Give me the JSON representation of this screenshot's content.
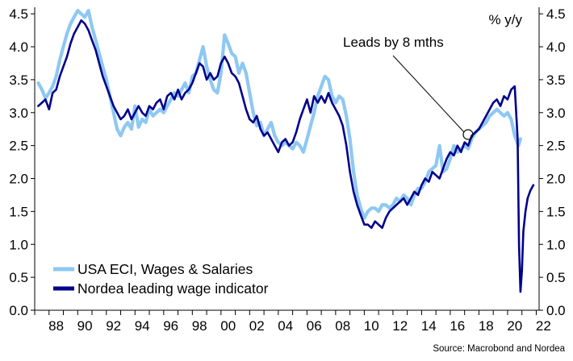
{
  "chart_data": {
    "type": "line",
    "unit_label": "% y/y",
    "source": "Source: Macrobond and Nordea",
    "annotation": {
      "text": "Leads by 8 mths",
      "x": 2017.7,
      "y": 2.7
    },
    "xlim": [
      1987.0,
      2022.2
    ],
    "ylim": [
      0.0,
      4.6
    ],
    "y_ticks": [
      0.0,
      0.5,
      1.0,
      1.5,
      2.0,
      2.5,
      3.0,
      3.5,
      4.0,
      4.5
    ],
    "x_ticks": [
      1988,
      1990,
      1992,
      1994,
      1996,
      1998,
      2000,
      2002,
      2004,
      2006,
      2008,
      2010,
      2012,
      2014,
      2016,
      2018,
      2020,
      2022
    ],
    "x_tick_labels": [
      "88",
      "90",
      "92",
      "94",
      "96",
      "98",
      "00",
      "02",
      "04",
      "06",
      "08",
      "10",
      "12",
      "14",
      "16",
      "18",
      "20",
      "22"
    ],
    "grid": false,
    "legend_position": "bottom-left",
    "colors": {
      "series_0": "#8ec8f2",
      "series_1": "#00008c"
    },
    "series": [
      {
        "name": "USA ECI, Wages & Salaries",
        "points": [
          [
            1987.25,
            3.45
          ],
          [
            1987.5,
            3.35
          ],
          [
            1987.75,
            3.22
          ],
          [
            1988.0,
            3.3
          ],
          [
            1988.25,
            3.4
          ],
          [
            1988.5,
            3.55
          ],
          [
            1988.75,
            3.8
          ],
          [
            1989.0,
            4.0
          ],
          [
            1989.25,
            4.2
          ],
          [
            1989.5,
            4.35
          ],
          [
            1989.75,
            4.45
          ],
          [
            1990.0,
            4.55
          ],
          [
            1990.25,
            4.5
          ],
          [
            1990.5,
            4.45
          ],
          [
            1990.75,
            4.55
          ],
          [
            1991.0,
            4.3
          ],
          [
            1991.25,
            4.1
          ],
          [
            1991.5,
            3.9
          ],
          [
            1991.75,
            3.7
          ],
          [
            1992.0,
            3.5
          ],
          [
            1992.25,
            3.25
          ],
          [
            1992.5,
            3.0
          ],
          [
            1992.75,
            2.75
          ],
          [
            1993.0,
            2.65
          ],
          [
            1993.25,
            2.78
          ],
          [
            1993.5,
            2.85
          ],
          [
            1993.75,
            2.75
          ],
          [
            1994.0,
            3.1
          ],
          [
            1994.25,
            2.78
          ],
          [
            1994.5,
            2.9
          ],
          [
            1994.75,
            2.85
          ],
          [
            1995.0,
            3.05
          ],
          [
            1995.25,
            2.95
          ],
          [
            1995.5,
            3.0
          ],
          [
            1995.75,
            3.05
          ],
          [
            1996.0,
            3.0
          ],
          [
            1996.25,
            3.1
          ],
          [
            1996.5,
            3.2
          ],
          [
            1996.75,
            3.3
          ],
          [
            1997.0,
            3.25
          ],
          [
            1997.25,
            3.35
          ],
          [
            1997.5,
            3.45
          ],
          [
            1997.75,
            3.3
          ],
          [
            1998.0,
            3.55
          ],
          [
            1998.25,
            3.6
          ],
          [
            1998.5,
            3.8
          ],
          [
            1998.75,
            4.0
          ],
          [
            1999.0,
            3.7
          ],
          [
            1999.25,
            3.5
          ],
          [
            1999.5,
            3.35
          ],
          [
            1999.75,
            3.3
          ],
          [
            2000.0,
            3.6
          ],
          [
            2000.25,
            4.18
          ],
          [
            2000.5,
            4.05
          ],
          [
            2000.75,
            3.9
          ],
          [
            2001.0,
            3.85
          ],
          [
            2001.25,
            3.6
          ],
          [
            2001.5,
            3.75
          ],
          [
            2001.75,
            3.6
          ],
          [
            2002.0,
            3.3
          ],
          [
            2002.25,
            3.0
          ],
          [
            2002.5,
            2.8
          ],
          [
            2002.75,
            2.85
          ],
          [
            2003.0,
            2.65
          ],
          [
            2003.25,
            2.75
          ],
          [
            2003.5,
            2.85
          ],
          [
            2003.75,
            2.65
          ],
          [
            2004.0,
            2.55
          ],
          [
            2004.25,
            2.5
          ],
          [
            2004.5,
            2.55
          ],
          [
            2004.75,
            2.5
          ],
          [
            2005.0,
            2.45
          ],
          [
            2005.25,
            2.55
          ],
          [
            2005.5,
            2.5
          ],
          [
            2005.75,
            2.4
          ],
          [
            2006.0,
            2.6
          ],
          [
            2006.25,
            2.8
          ],
          [
            2006.5,
            3.0
          ],
          [
            2006.75,
            3.25
          ],
          [
            2007.0,
            3.4
          ],
          [
            2007.25,
            3.55
          ],
          [
            2007.5,
            3.5
          ],
          [
            2007.75,
            3.25
          ],
          [
            2008.0,
            3.15
          ],
          [
            2008.25,
            3.25
          ],
          [
            2008.5,
            3.2
          ],
          [
            2008.75,
            2.95
          ],
          [
            2009.0,
            2.6
          ],
          [
            2009.25,
            2.1
          ],
          [
            2009.5,
            1.75
          ],
          [
            2009.75,
            1.55
          ],
          [
            2010.0,
            1.4
          ],
          [
            2010.25,
            1.5
          ],
          [
            2010.5,
            1.55
          ],
          [
            2010.75,
            1.55
          ],
          [
            2011.0,
            1.5
          ],
          [
            2011.25,
            1.6
          ],
          [
            2011.5,
            1.6
          ],
          [
            2011.75,
            1.55
          ],
          [
            2012.0,
            1.6
          ],
          [
            2012.25,
            1.7
          ],
          [
            2012.5,
            1.65
          ],
          [
            2012.75,
            1.75
          ],
          [
            2013.0,
            1.7
          ],
          [
            2013.25,
            1.6
          ],
          [
            2013.5,
            1.75
          ],
          [
            2013.75,
            1.85
          ],
          [
            2014.0,
            1.85
          ],
          [
            2014.25,
            1.95
          ],
          [
            2014.5,
            2.1
          ],
          [
            2014.75,
            2.15
          ],
          [
            2015.0,
            2.2
          ],
          [
            2015.25,
            2.5
          ],
          [
            2015.5,
            2.1
          ],
          [
            2015.75,
            2.15
          ],
          [
            2016.0,
            2.3
          ],
          [
            2016.25,
            2.5
          ],
          [
            2016.5,
            2.4
          ],
          [
            2016.75,
            2.45
          ],
          [
            2017.0,
            2.5
          ],
          [
            2017.25,
            2.45
          ],
          [
            2017.5,
            2.6
          ],
          [
            2017.75,
            2.7
          ],
          [
            2018.0,
            2.75
          ],
          [
            2018.25,
            2.8
          ],
          [
            2018.5,
            2.85
          ],
          [
            2018.75,
            2.95
          ],
          [
            2019.0,
            3.0
          ],
          [
            2019.25,
            3.05
          ],
          [
            2019.5,
            3.0
          ],
          [
            2019.75,
            2.95
          ],
          [
            2020.0,
            3.0
          ],
          [
            2020.25,
            2.9
          ],
          [
            2020.5,
            2.65
          ],
          [
            2020.75,
            2.5
          ],
          [
            2020.9,
            2.6
          ]
        ]
      },
      {
        "name": "Nordea leading wage indicator",
        "points": [
          [
            1987.25,
            3.1
          ],
          [
            1987.5,
            3.15
          ],
          [
            1987.75,
            3.2
          ],
          [
            1988.0,
            3.05
          ],
          [
            1988.25,
            3.3
          ],
          [
            1988.5,
            3.35
          ],
          [
            1988.75,
            3.55
          ],
          [
            1989.0,
            3.7
          ],
          [
            1989.25,
            3.85
          ],
          [
            1989.5,
            4.05
          ],
          [
            1989.75,
            4.2
          ],
          [
            1990.0,
            4.3
          ],
          [
            1990.25,
            4.4
          ],
          [
            1990.5,
            4.35
          ],
          [
            1990.75,
            4.25
          ],
          [
            1991.0,
            4.1
          ],
          [
            1991.25,
            3.95
          ],
          [
            1991.5,
            3.75
          ],
          [
            1991.75,
            3.55
          ],
          [
            1992.0,
            3.4
          ],
          [
            1992.25,
            3.25
          ],
          [
            1992.5,
            3.1
          ],
          [
            1992.75,
            3.0
          ],
          [
            1993.0,
            2.9
          ],
          [
            1993.25,
            2.95
          ],
          [
            1993.5,
            3.05
          ],
          [
            1993.75,
            2.9
          ],
          [
            1994.0,
            3.0
          ],
          [
            1994.25,
            3.1
          ],
          [
            1994.5,
            3.0
          ],
          [
            1994.75,
            2.95
          ],
          [
            1995.0,
            3.1
          ],
          [
            1995.25,
            3.05
          ],
          [
            1995.5,
            3.15
          ],
          [
            1995.75,
            3.2
          ],
          [
            1996.0,
            3.05
          ],
          [
            1996.25,
            3.25
          ],
          [
            1996.5,
            3.3
          ],
          [
            1996.75,
            3.2
          ],
          [
            1997.0,
            3.35
          ],
          [
            1997.25,
            3.2
          ],
          [
            1997.5,
            3.3
          ],
          [
            1997.75,
            3.35
          ],
          [
            1998.0,
            3.45
          ],
          [
            1998.25,
            3.6
          ],
          [
            1998.5,
            3.75
          ],
          [
            1998.75,
            3.7
          ],
          [
            1999.0,
            3.5
          ],
          [
            1999.25,
            3.6
          ],
          [
            1999.5,
            3.5
          ],
          [
            1999.75,
            3.55
          ],
          [
            2000.0,
            3.75
          ],
          [
            2000.25,
            3.85
          ],
          [
            2000.5,
            3.75
          ],
          [
            2000.75,
            3.6
          ],
          [
            2001.0,
            3.55
          ],
          [
            2001.25,
            3.45
          ],
          [
            2001.5,
            3.25
          ],
          [
            2001.75,
            3.05
          ],
          [
            2002.0,
            2.9
          ],
          [
            2002.25,
            2.85
          ],
          [
            2002.5,
            2.95
          ],
          [
            2002.75,
            2.75
          ],
          [
            2003.0,
            2.65
          ],
          [
            2003.25,
            2.7
          ],
          [
            2003.5,
            2.6
          ],
          [
            2003.75,
            2.5
          ],
          [
            2004.0,
            2.4
          ],
          [
            2004.25,
            2.55
          ],
          [
            2004.5,
            2.6
          ],
          [
            2004.75,
            2.5
          ],
          [
            2005.0,
            2.55
          ],
          [
            2005.25,
            2.7
          ],
          [
            2005.5,
            2.9
          ],
          [
            2005.75,
            3.05
          ],
          [
            2006.0,
            3.2
          ],
          [
            2006.25,
            3.0
          ],
          [
            2006.5,
            3.25
          ],
          [
            2006.75,
            3.15
          ],
          [
            2007.0,
            3.25
          ],
          [
            2007.25,
            3.15
          ],
          [
            2007.5,
            3.3
          ],
          [
            2007.75,
            3.15
          ],
          [
            2008.0,
            3.05
          ],
          [
            2008.25,
            2.95
          ],
          [
            2008.5,
            2.8
          ],
          [
            2008.75,
            2.5
          ],
          [
            2009.0,
            2.1
          ],
          [
            2009.25,
            1.8
          ],
          [
            2009.5,
            1.6
          ],
          [
            2009.75,
            1.45
          ],
          [
            2010.0,
            1.3
          ],
          [
            2010.25,
            1.3
          ],
          [
            2010.5,
            1.25
          ],
          [
            2010.75,
            1.35
          ],
          [
            2011.0,
            1.3
          ],
          [
            2011.25,
            1.25
          ],
          [
            2011.5,
            1.4
          ],
          [
            2011.75,
            1.5
          ],
          [
            2012.0,
            1.55
          ],
          [
            2012.25,
            1.6
          ],
          [
            2012.5,
            1.65
          ],
          [
            2012.75,
            1.7
          ],
          [
            2013.0,
            1.6
          ],
          [
            2013.25,
            1.7
          ],
          [
            2013.5,
            1.8
          ],
          [
            2013.75,
            1.75
          ],
          [
            2014.0,
            1.9
          ],
          [
            2014.25,
            2.0
          ],
          [
            2014.5,
            1.95
          ],
          [
            2014.75,
            2.1
          ],
          [
            2015.0,
            2.05
          ],
          [
            2015.25,
            2.0
          ],
          [
            2015.5,
            2.15
          ],
          [
            2015.75,
            2.3
          ],
          [
            2016.0,
            2.4
          ],
          [
            2016.25,
            2.35
          ],
          [
            2016.5,
            2.5
          ],
          [
            2016.75,
            2.4
          ],
          [
            2017.0,
            2.55
          ],
          [
            2017.25,
            2.5
          ],
          [
            2017.5,
            2.65
          ],
          [
            2017.75,
            2.7
          ],
          [
            2018.0,
            2.75
          ],
          [
            2018.25,
            2.85
          ],
          [
            2018.5,
            2.95
          ],
          [
            2018.75,
            3.05
          ],
          [
            2019.0,
            3.15
          ],
          [
            2019.25,
            3.2
          ],
          [
            2019.5,
            3.1
          ],
          [
            2019.75,
            3.25
          ],
          [
            2020.0,
            3.2
          ],
          [
            2020.25,
            3.35
          ],
          [
            2020.5,
            3.4
          ],
          [
            2020.7,
            2.6
          ],
          [
            2020.8,
            1.0
          ],
          [
            2020.9,
            0.28
          ],
          [
            2021.0,
            0.6
          ],
          [
            2021.1,
            1.2
          ],
          [
            2021.25,
            1.5
          ],
          [
            2021.4,
            1.7
          ],
          [
            2021.6,
            1.82
          ],
          [
            2021.8,
            1.9
          ]
        ]
      }
    ]
  }
}
